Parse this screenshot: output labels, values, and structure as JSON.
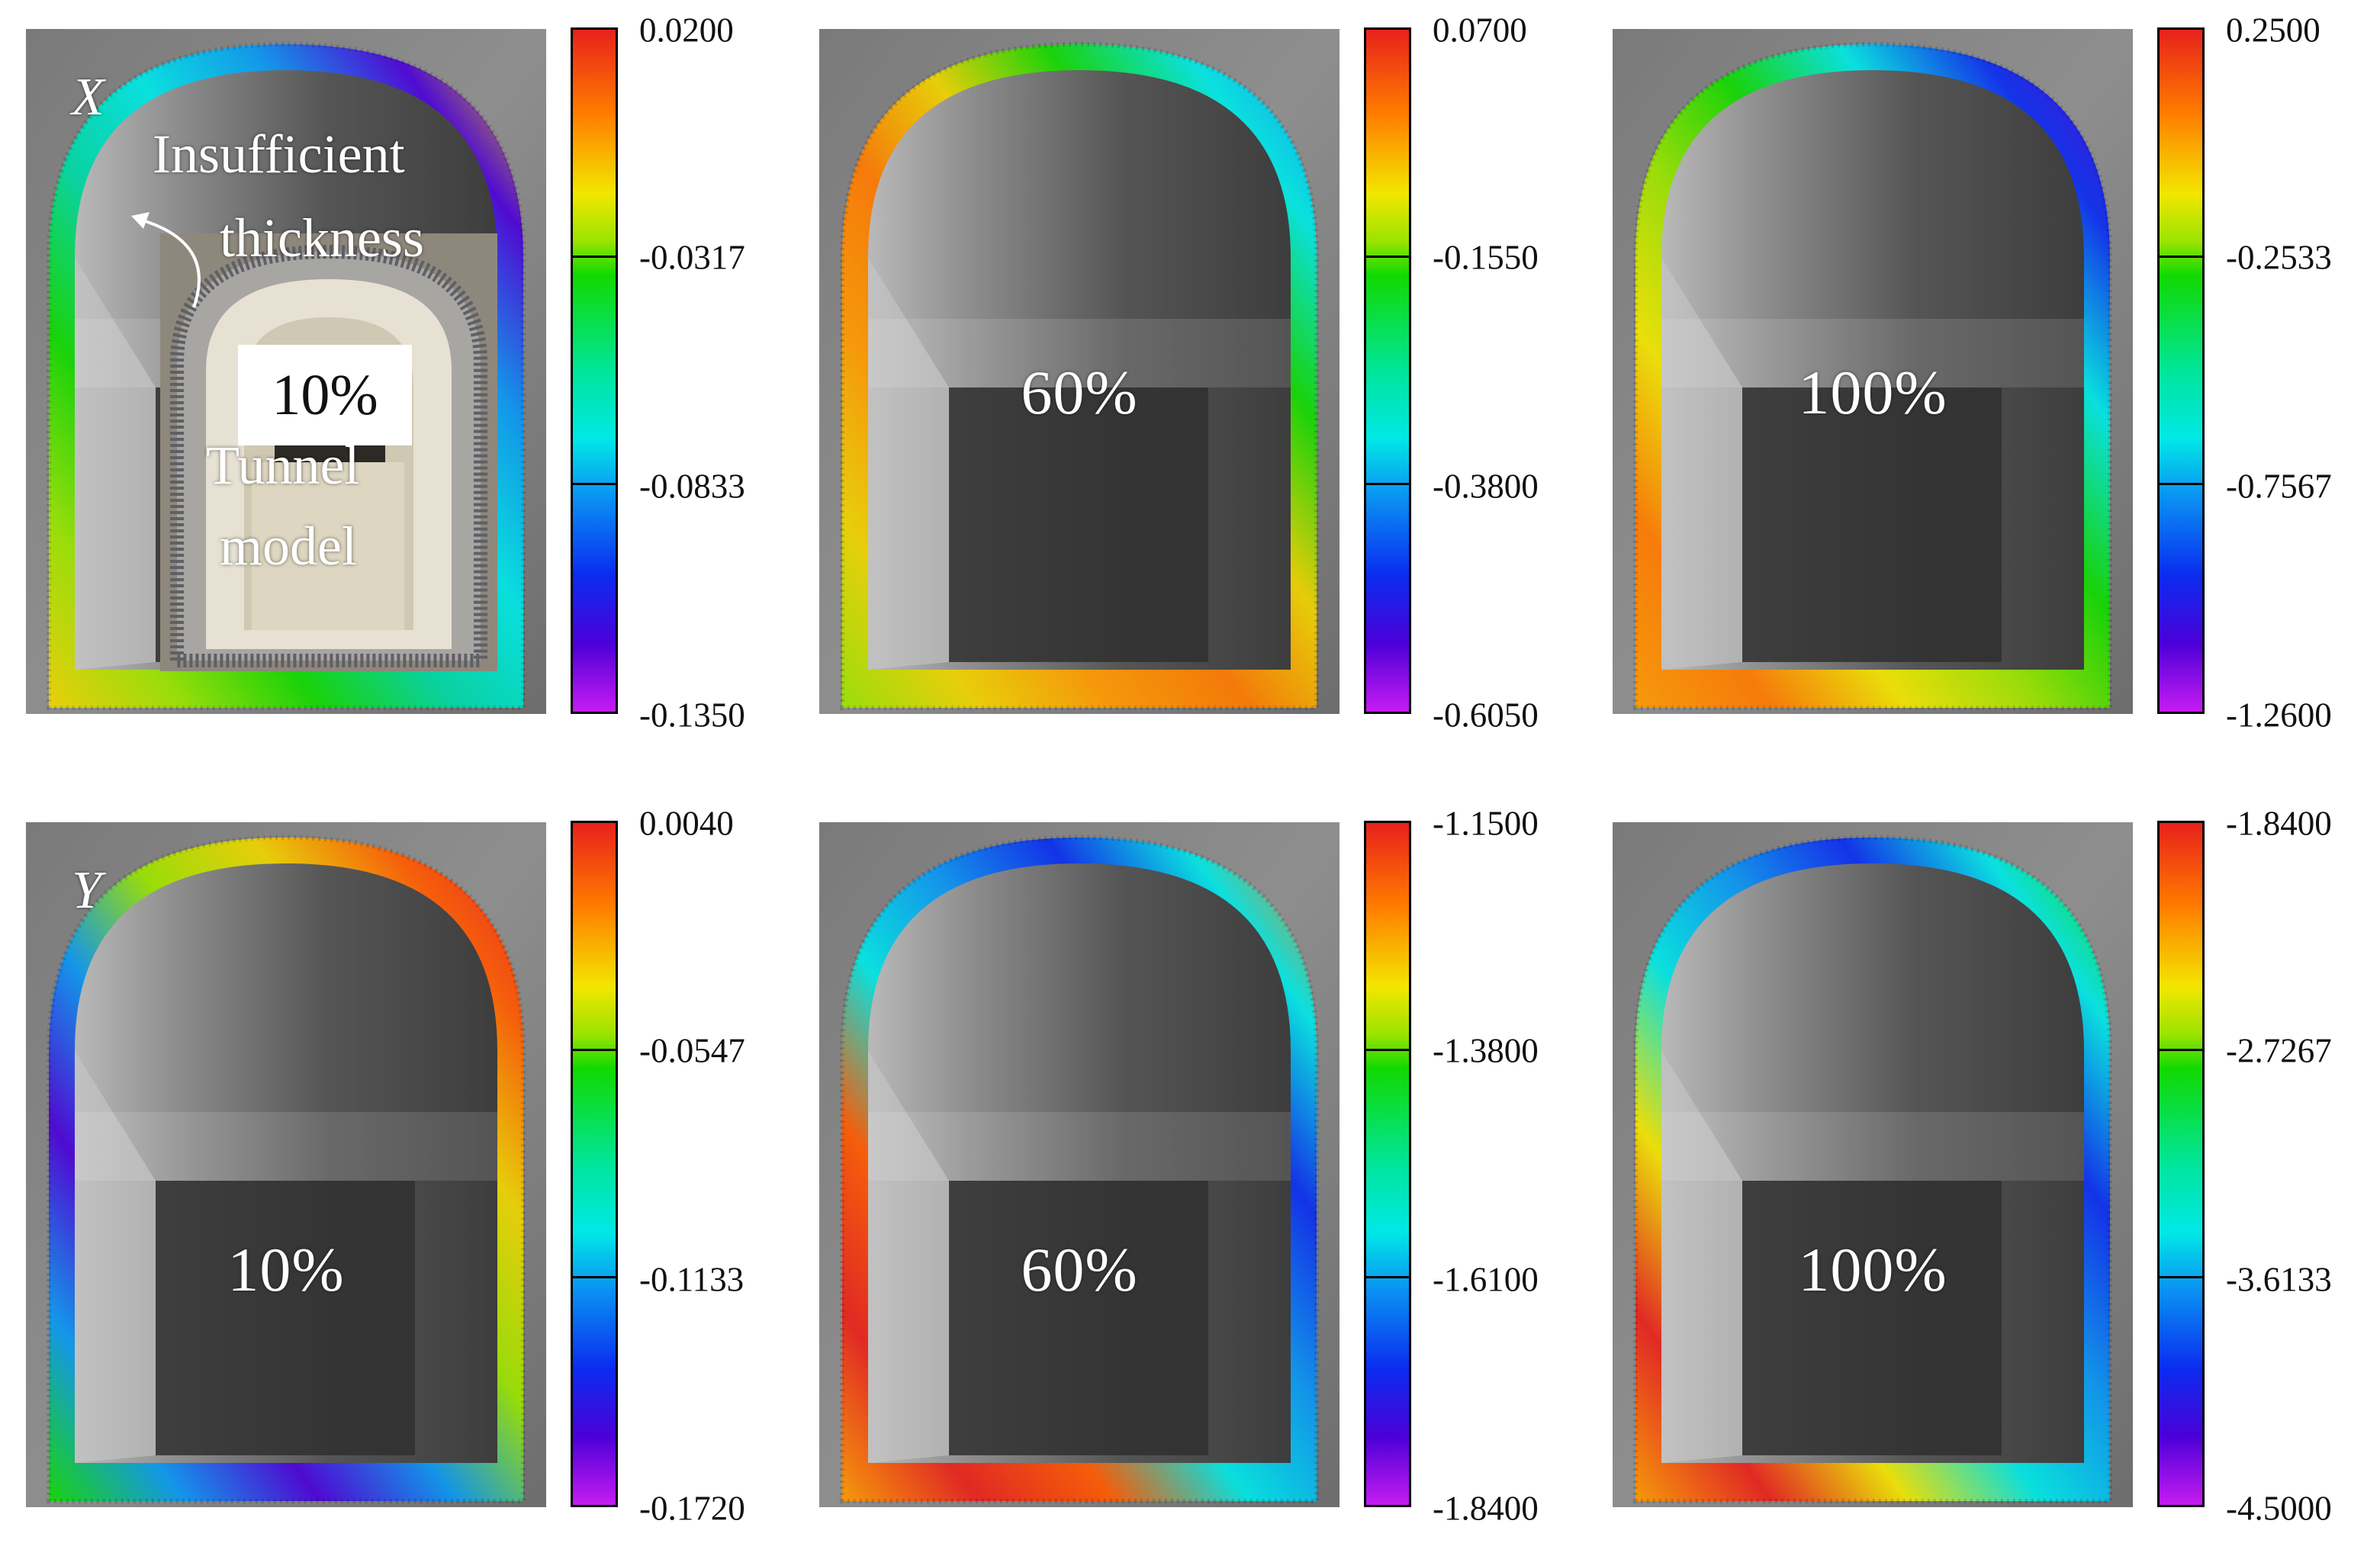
{
  "rows": [
    {
      "axis": "X"
    },
    {
      "axis": "Y"
    }
  ],
  "panels": [
    {
      "row": "X",
      "percent": "10%",
      "colorbar": [
        "0.0200",
        "-0.0317",
        "-0.0833",
        "-0.1350"
      ]
    },
    {
      "row": "X",
      "percent": "60%",
      "colorbar": [
        "0.0700",
        "-0.1550",
        "-0.3800",
        "-0.6050"
      ]
    },
    {
      "row": "X",
      "percent": "100%",
      "colorbar": [
        "0.2500",
        "-0.2533",
        "-0.7567",
        "-1.2600"
      ]
    },
    {
      "row": "Y",
      "percent": "10%",
      "colorbar": [
        "0.0040",
        "-0.0547",
        "-0.1133",
        "-0.1720"
      ]
    },
    {
      "row": "Y",
      "percent": "60%",
      "colorbar": [
        "-1.1500",
        "-1.3800",
        "-1.6100",
        "-1.8400"
      ]
    },
    {
      "row": "Y",
      "percent": "100%",
      "colorbar": [
        "-1.8400",
        "-2.7267",
        "-3.6133",
        "-4.5000"
      ]
    }
  ],
  "annotations": {
    "insufficient_line1": "Insufficient",
    "insufficient_line2": "thickness",
    "model_line1": "Tunnel",
    "model_line2": "model"
  },
  "colors": {
    "colormap": [
      "#e8211b",
      "#ff7a00",
      "#f3e600",
      "#11d900",
      "#00e8e6",
      "#0a97f2",
      "#0a2cf0",
      "#c51cf1"
    ]
  }
}
